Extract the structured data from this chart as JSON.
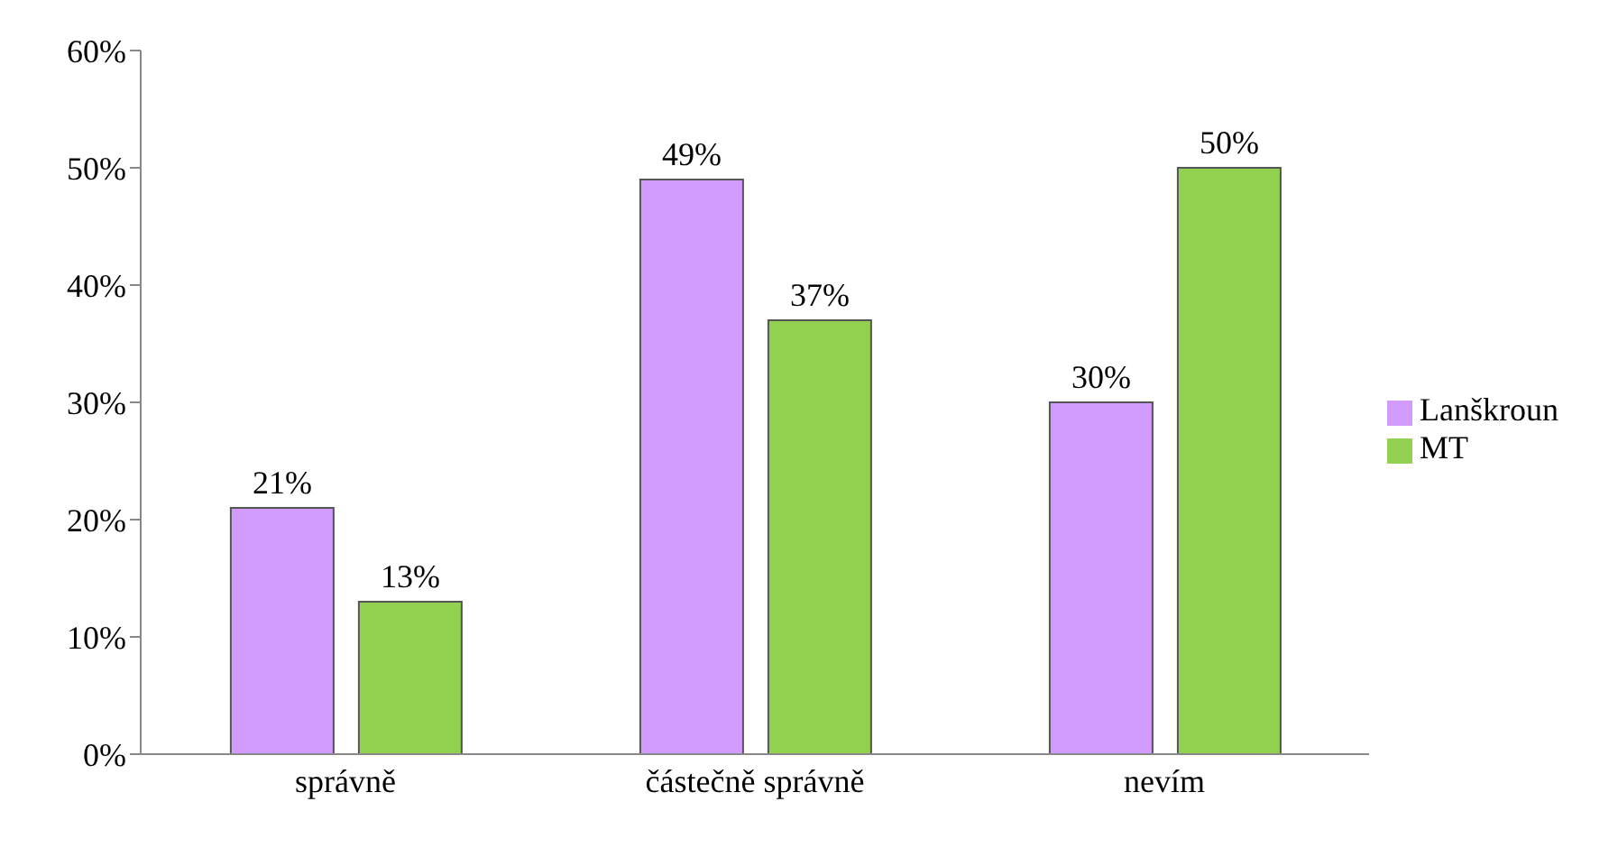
{
  "chart_data": {
    "type": "bar",
    "categories": [
      "správně",
      "částečně správně",
      "nevím"
    ],
    "series": [
      {
        "name": "Lanškroun",
        "color": "#d29cff",
        "values": [
          21,
          49,
          30
        ],
        "value_labels": [
          "21%",
          "49%",
          "30%"
        ]
      },
      {
        "name": "MT",
        "color": "#92d050",
        "values": [
          13,
          37,
          50
        ],
        "value_labels": [
          "13%",
          "37%",
          "50%"
        ]
      }
    ],
    "ylim": [
      0,
      60
    ],
    "yticks": [
      {
        "value": 0,
        "label": "0%"
      },
      {
        "value": 10,
        "label": "10%"
      },
      {
        "value": 20,
        "label": "20%"
      },
      {
        "value": 30,
        "label": "30%"
      },
      {
        "value": 40,
        "label": "40%"
      },
      {
        "value": 50,
        "label": "50%"
      },
      {
        "value": 60,
        "label": "60%"
      }
    ],
    "grid": false,
    "legend": "right"
  }
}
